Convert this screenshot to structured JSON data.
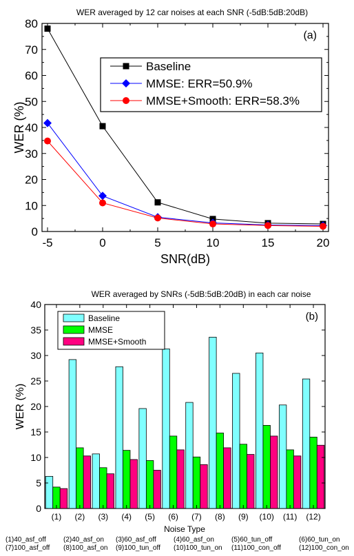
{
  "chart_data": [
    {
      "type": "line",
      "title": "WER averaged by 12 car noises at each SNR (-5dB:5dB:20dB)",
      "panel_label": "(a)",
      "xlabel": "SNR(dB)",
      "ylabel": "WER (%)",
      "x": [
        -5,
        0,
        5,
        10,
        15,
        20
      ],
      "xlim": [
        -5.5,
        20.5
      ],
      "ylim": [
        0,
        80
      ],
      "xticks": [
        "-5",
        "0",
        "5",
        "10",
        "15",
        "20"
      ],
      "yticks": [
        "0",
        "10",
        "20",
        "30",
        "40",
        "50",
        "60",
        "70",
        "80"
      ],
      "legend_placement": "center-right",
      "series": [
        {
          "name": "Baseline",
          "color": "#000000",
          "marker": "square",
          "values": [
            78.0,
            40.5,
            11.2,
            4.8,
            3.2,
            2.9
          ]
        },
        {
          "name": "MMSE: ERR=50.9%",
          "color": "#0000ff",
          "marker": "diamond",
          "values": [
            41.7,
            13.7,
            5.5,
            3.3,
            2.5,
            2.3
          ]
        },
        {
          "name": "MMSE+Smooth: ERR=58.3%",
          "color": "#ff0000",
          "marker": "circle",
          "values": [
            34.8,
            11.0,
            5.2,
            2.9,
            2.3,
            2.0
          ]
        }
      ]
    },
    {
      "type": "bar",
      "title": "WER averaged by SNRs (-5dB:5dB:20dB) in each car noise",
      "panel_label": "(b)",
      "xlabel": "Noise Type",
      "ylabel": "WER (%)",
      "categories": [
        "(1)",
        "(2)",
        "(3)",
        "(4)",
        "(5)",
        "(6)",
        "(7)",
        "(8)",
        "(9)",
        "(10)",
        "(11)",
        "(12)"
      ],
      "ylim": [
        0,
        40
      ],
      "yticks": [
        "0",
        "5",
        "10",
        "15",
        "20",
        "25",
        "30",
        "35",
        "40"
      ],
      "legend_placement": "top-left",
      "series": [
        {
          "name": "Baseline",
          "color": "#80ffff",
          "values": [
            6.3,
            29.2,
            10.7,
            27.8,
            19.6,
            31.3,
            20.8,
            33.6,
            26.5,
            30.5,
            20.3,
            25.4
          ]
        },
        {
          "name": "MMSE",
          "color": "#00ff00",
          "values": [
            4.2,
            11.9,
            8.0,
            11.4,
            9.4,
            14.2,
            10.1,
            14.8,
            12.6,
            16.3,
            11.5,
            14.0
          ]
        },
        {
          "name": "MMSE+Smooth",
          "color": "#ff0080",
          "values": [
            3.9,
            10.3,
            6.8,
            9.6,
            7.5,
            11.5,
            8.6,
            11.9,
            10.6,
            14.2,
            10.3,
            12.4
          ]
        }
      ],
      "footnote_lines": [
        [
          "(1)40_asf_off",
          "(2)40_asf_on",
          "(3)60_asf_off",
          "(4)60_asf_on",
          "(5)60_tun_off",
          "(6)60_tun_on"
        ],
        [
          "(7)100_asf_off",
          "(8)100_asf_on",
          "(9)100_tun_off",
          "(10)100_tun_on",
          "(11)100_con_off",
          "(12)100_con_on"
        ]
      ]
    }
  ]
}
